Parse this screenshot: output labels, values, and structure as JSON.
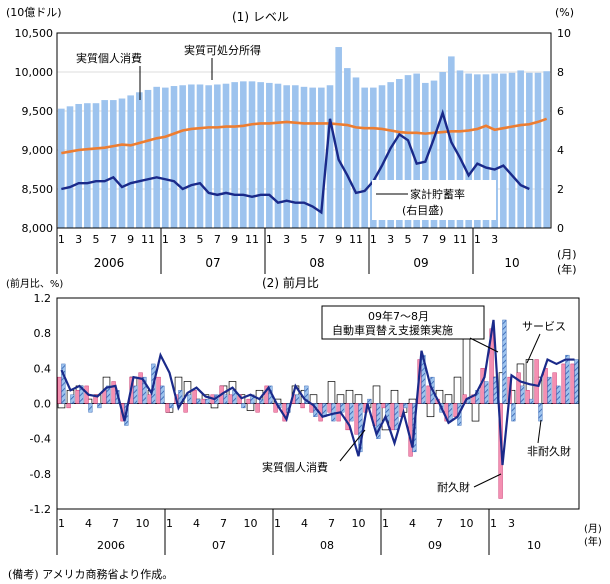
{
  "note": "(備考) アメリカ商務省より作成。",
  "chart_data": [
    {
      "type": "bar",
      "title": "(1) レベル",
      "ylabel_left": "(10億ドル)",
      "ylabel_right": "(%)",
      "ylim_left": [
        8000,
        10500
      ],
      "ylim_right": [
        0,
        10
      ],
      "left_ticks": [
        "8,000",
        "8,500",
        "9,000",
        "9,500",
        "10,000",
        "10,500"
      ],
      "right_ticks": [
        "0",
        "2",
        "4",
        "6",
        "8",
        "10"
      ],
      "x_month_ticks": [
        "1",
        "3",
        "5",
        "7",
        "9",
        "11",
        "1",
        "3",
        "5",
        "7",
        "9",
        "11",
        "1",
        "3",
        "5",
        "7",
        "9",
        "11",
        "1",
        "3",
        "5",
        "7",
        "9",
        "11",
        "1",
        "3"
      ],
      "year_labels": [
        "2006",
        "07",
        "08",
        "09",
        "10"
      ],
      "x_unit": "(月)",
      "x_unit2": "(年)",
      "labels": {
        "consumption": "実質個人消費",
        "income": "実質可処分所得",
        "saving_line1": "家計貯蓄率",
        "saving_line2": "(右目盛)"
      },
      "series": [
        {
          "name": "実質可処分所得",
          "type": "bar",
          "color": "#9dc3ee",
          "values": [
            9530,
            9560,
            9590,
            9600,
            9600,
            9640,
            9640,
            9660,
            9700,
            9740,
            9770,
            9810,
            9800,
            9820,
            9830,
            9840,
            9840,
            9830,
            9840,
            9850,
            9870,
            9880,
            9880,
            9870,
            9860,
            9850,
            9830,
            9830,
            9810,
            9800,
            9800,
            9830,
            10320,
            10050,
            9930,
            9800,
            9800,
            9830,
            9870,
            9910,
            9960,
            9980,
            9860,
            9890,
            10000,
            10200,
            10020,
            9980,
            9970,
            9970,
            9980,
            9980,
            9990,
            10020,
            9990,
            9990,
            10010
          ]
        },
        {
          "name": "実質個人消費",
          "type": "line",
          "color": "#ed7d31",
          "values": [
            8960,
            8980,
            9000,
            9010,
            9020,
            9030,
            9050,
            9070,
            9060,
            9090,
            9120,
            9150,
            9170,
            9210,
            9250,
            9270,
            9280,
            9290,
            9290,
            9300,
            9300,
            9310,
            9330,
            9340,
            9340,
            9350,
            9360,
            9350,
            9340,
            9340,
            9340,
            9340,
            9330,
            9320,
            9290,
            9280,
            9280,
            9270,
            9250,
            9230,
            9220,
            9220,
            9210,
            9220,
            9230,
            9240,
            9240,
            9250,
            9270,
            9310,
            9260,
            9280,
            9300,
            9320,
            9330,
            9360,
            9400
          ]
        },
        {
          "name": "家計貯蓄率",
          "type": "line",
          "axis": "right",
          "color": "#1a2a8a",
          "values": [
            2.0,
            2.1,
            2.3,
            2.3,
            2.4,
            2.4,
            2.6,
            2.1,
            2.3,
            2.4,
            2.5,
            2.6,
            2.5,
            2.4,
            2.0,
            2.2,
            2.3,
            1.8,
            1.7,
            1.8,
            1.7,
            1.7,
            1.6,
            1.7,
            1.7,
            1.3,
            1.4,
            1.3,
            1.3,
            1.1,
            0.8,
            5.6,
            3.5,
            2.7,
            1.8,
            1.9,
            2.4,
            3.2,
            4.1,
            4.8,
            4.5,
            3.3,
            3.4,
            4.6,
            5.9,
            4.4,
            3.6,
            2.7,
            3.3,
            3.1,
            3.0,
            3.2,
            2.7,
            2.2,
            2.0
          ]
        }
      ]
    },
    {
      "type": "bar",
      "title": "(2) 前月比",
      "ylabel": "(前月比、%)",
      "ylim": [
        -1.2,
        1.2
      ],
      "y_ticks": [
        "1.2",
        "0.8",
        "0.4",
        "0.0",
        "-0.4",
        "-0.8",
        "-1.2"
      ],
      "x_month_ticks": [
        "1",
        "4",
        "7",
        "10",
        "1",
        "4",
        "7",
        "10",
        "1",
        "4",
        "7",
        "10",
        "1",
        "4",
        "7",
        "10",
        "1",
        "3"
      ],
      "year_labels": [
        "2006",
        "07",
        "08",
        "09",
        "10"
      ],
      "x_unit": "(月)",
      "x_unit2": "(年)",
      "labels": {
        "callout_line1": "09年7～8月",
        "callout_line2": "自動車買替え支援策実施",
        "services": "サービス",
        "consumption": "実質個人消費",
        "nondurables": "非耐久財",
        "durables": "耐久財"
      },
      "series": [
        {
          "name": "サービス",
          "type": "bar",
          "color": "#ffffff",
          "values": [
            -0.05,
            0.15,
            0.2,
            0.05,
            0.1,
            0.3,
            0.05,
            -0.15,
            0.3,
            0.1,
            0.15,
            0.1,
            -0.1,
            0.3,
            0.25,
            0.05,
            0.1,
            -0.05,
            0.2,
            0.25,
            0.1,
            -0.08,
            0.15,
            0.08,
            0.05,
            -0.1,
            0.2,
            0.15,
            0.1,
            -0.15,
            0.25,
            0.1,
            0.15,
            0.1,
            -0.05,
            0.2,
            -0.3,
            0.15,
            -0.1,
            0.05,
            0.2,
            -0.15,
            0.15,
            0.1,
            0.3,
            1.05,
            -0.2,
            0.15,
            0.3,
            0.35,
            0.15,
            0.45,
            0.5,
            0.3
          ]
        },
        {
          "name": "非耐久財",
          "type": "bar",
          "color": "#2e5fb0",
          "values": [
            0.45,
            0.1,
            0.2,
            -0.1,
            -0.05,
            0.2,
            0.15,
            -0.25,
            0.2,
            0.3,
            0.45,
            0.2,
            -0.05,
            0.15,
            0.1,
            0.05,
            0.05,
            0.1,
            0.1,
            0.15,
            -0.05,
            0.1,
            0.05,
            0.2,
            -0.05,
            -0.1,
            0.1,
            0.2,
            -0.15,
            -0.15,
            -0.2,
            -0.1,
            -0.2,
            -0.55,
            0.05,
            -0.4,
            -0.2,
            -0.3,
            -0.05,
            -0.55,
            0.55,
            0.3,
            -0.1,
            -0.2,
            -0.25,
            0.05,
            0.15,
            0.25,
            0.3,
            0.95,
            -0.2,
            0.2,
            0.05,
            -0.2,
            0.3,
            0.2,
            0.55,
            0.5
          ]
        },
        {
          "name": "耐久財",
          "type": "bar",
          "color": "#f48fb1",
          "values": [
            0.3,
            -0.05,
            0.15,
            0.2,
            0.1,
            0.15,
            0.25,
            -0.2,
            0.3,
            0.35,
            0.1,
            0.3,
            -0.1,
            0.1,
            -0.1,
            0.15,
            0.05,
            0.1,
            0.2,
            0.1,
            0.1,
            0.05,
            -0.1,
            0.2,
            -0.1,
            -0.2,
            0.1,
            -0.05,
            -0.1,
            -0.2,
            -0.1,
            -0.2,
            -0.3,
            -0.35,
            -0.1,
            -0.25,
            -0.05,
            -0.3,
            -0.15,
            -0.6,
            0.5,
            0.2,
            0.05,
            -0.2,
            -0.15,
            0.1,
            0.1,
            0.4,
            0.85,
            -1.08,
            0.3,
            0.35,
            0.15,
            0.5,
            0.4,
            0.35,
            0.45,
            0.45
          ]
        },
        {
          "name": "実質個人消費",
          "type": "line",
          "color": "#1a2a8a",
          "values": [
            0.38,
            0.15,
            0.2,
            0.1,
            0.08,
            0.18,
            0.2,
            -0.2,
            0.3,
            0.28,
            0.12,
            0.55,
            0.35,
            -0.05,
            0.12,
            0.18,
            0.08,
            0.05,
            0.12,
            0.18,
            0.06,
            0.1,
            0.05,
            0.18,
            -0.02,
            -0.18,
            0.2,
            0.05,
            -0.02,
            -0.15,
            -0.12,
            -0.1,
            -0.25,
            -0.6,
            0.0,
            -0.35,
            -0.15,
            -0.45,
            -0.1,
            -0.5,
            0.6,
            0.2,
            0.0,
            -0.22,
            -0.15,
            0.05,
            0.1,
            0.3,
            0.95,
            -0.7,
            0.32,
            0.25,
            0.22,
            0.2,
            0.5,
            0.45,
            0.5,
            0.5
          ]
        }
      ]
    }
  ]
}
